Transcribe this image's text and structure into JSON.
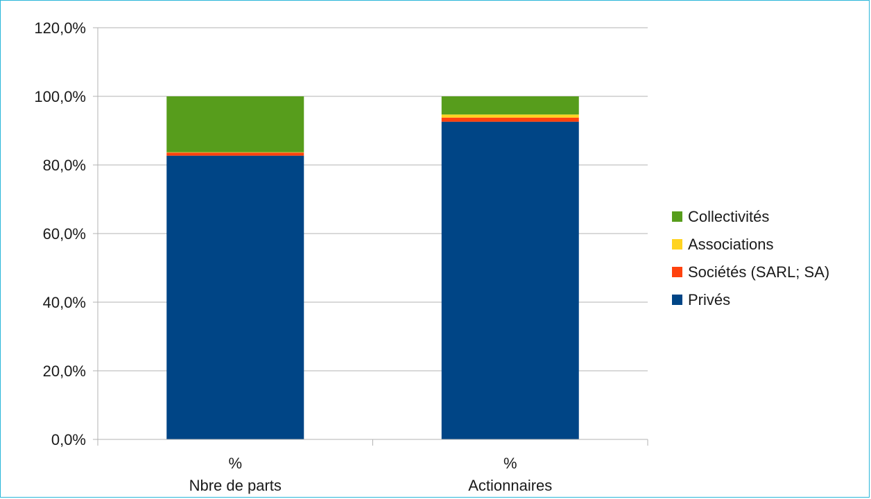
{
  "chart_data": {
    "type": "bar",
    "stacked": true,
    "categories": [
      [
        "%",
        "Nbre de parts"
      ],
      [
        "%",
        "Actionnaires"
      ]
    ],
    "series": [
      {
        "name": "Privés",
        "color": "#004586",
        "values": [
          82.7,
          92.6
        ]
      },
      {
        "name": "Sociétés (SARL; SA)",
        "color": "#ff420e",
        "values": [
          0.9,
          1.2
        ]
      },
      {
        "name": "Associations",
        "color": "#ffd320",
        "values": [
          0.1,
          0.9
        ]
      },
      {
        "name": "Collectivités",
        "color": "#579d1c",
        "values": [
          16.3,
          5.3
        ]
      }
    ],
    "yticks": [
      "0,0%",
      "20,0%",
      "40,0%",
      "60,0%",
      "80,0%",
      "100,0%",
      "120,0%"
    ],
    "ylim": [
      0,
      120
    ],
    "ytick_step": 20,
    "grid": true,
    "legend": "right",
    "legend_order": [
      "Collectivités",
      "Associations",
      "Sociétés (SARL; SA)",
      "Privés"
    ]
  }
}
